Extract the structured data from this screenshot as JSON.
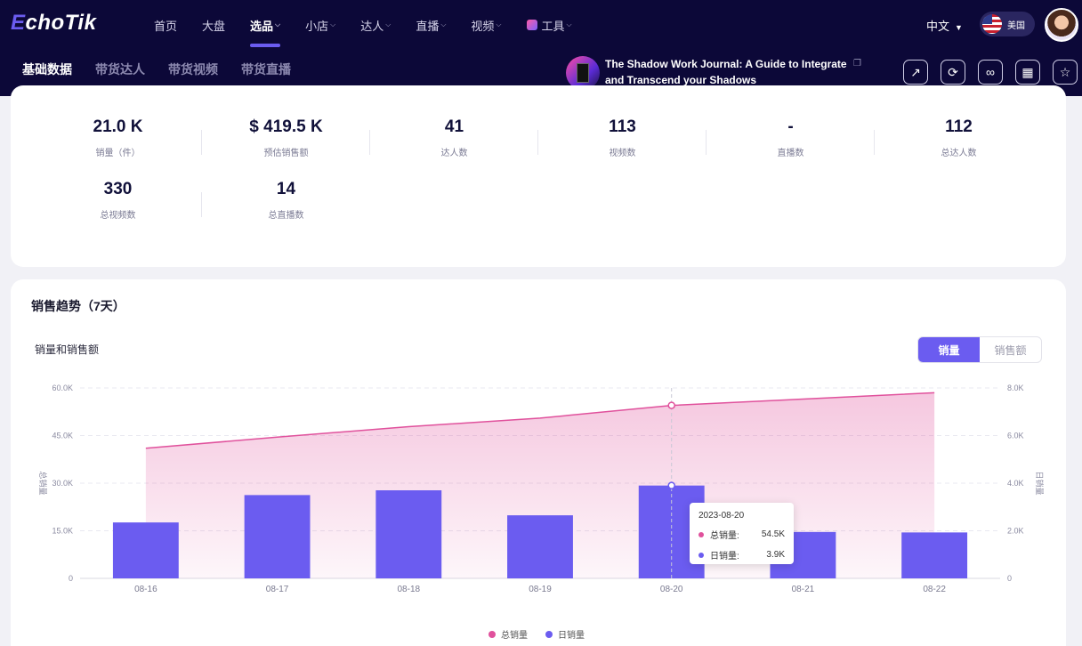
{
  "header": {
    "logo_prefix": "E",
    "logo_rest": "choTik",
    "nav": [
      {
        "label": "首页",
        "caret": false,
        "active": false
      },
      {
        "label": "大盘",
        "caret": false,
        "active": false
      },
      {
        "label": "选品",
        "caret": true,
        "active": true
      },
      {
        "label": "小店",
        "caret": true,
        "active": false
      },
      {
        "label": "达人",
        "caret": true,
        "active": false
      },
      {
        "label": "直播",
        "caret": true,
        "active": false
      },
      {
        "label": "视频",
        "caret": true,
        "active": false
      },
      {
        "label": "工具",
        "caret": true,
        "active": false,
        "icon": "tools-icon"
      }
    ],
    "language": "中文",
    "region": "美国",
    "subtabs": [
      "基础数据",
      "带货达人",
      "带货视频",
      "带货直播"
    ],
    "active_subtab": 0,
    "product_title": "The Shadow Work Journal: A Guide to Integrate and Transcend your Shadows",
    "action_icons": [
      "share-icon",
      "refresh-icon",
      "link-icon",
      "qrcode-icon",
      "star-icon"
    ]
  },
  "stats": [
    {
      "value": "21.0 K",
      "label": "销量（件）"
    },
    {
      "value": "$ 419.5 K",
      "label": "预估销售额"
    },
    {
      "value": "41",
      "label": "达人数"
    },
    {
      "value": "113",
      "label": "视频数"
    },
    {
      "value": "-",
      "label": "直播数"
    },
    {
      "value": "112",
      "label": "总达人数"
    },
    {
      "value": "330",
      "label": "总视频数"
    },
    {
      "value": "14",
      "label": "总直播数"
    }
  ],
  "trend": {
    "title": "销售趋势（7天）",
    "chart_title": "销量和销售额",
    "toggle": [
      "销量",
      "销售额"
    ],
    "toggle_active": 0
  },
  "chart_data": {
    "type": "bar",
    "categories": [
      "08-16",
      "08-17",
      "08-18",
      "08-19",
      "08-20",
      "08-21",
      "08-22"
    ],
    "series": [
      {
        "name": "总销量",
        "type": "area",
        "axis": "left",
        "color": "#e0519c",
        "values": [
          41000,
          44500,
          47800,
          50500,
          54500,
          56500,
          58500
        ]
      },
      {
        "name": "日销量",
        "type": "bar",
        "axis": "right",
        "color": "#6b5cf0",
        "values": [
          2350,
          3500,
          3700,
          2650,
          3900,
          1950,
          1930
        ]
      }
    ],
    "ylabel_left": "总销量",
    "ylabel_right": "日销量",
    "y_left_ticks": [
      "60.0K",
      "45.0K",
      "30.0K",
      "15.0K",
      "0"
    ],
    "y_right_ticks": [
      "8.0K",
      "6.0K",
      "4.0K",
      "2.0K",
      "0"
    ],
    "ylim_left": [
      0,
      60000
    ],
    "ylim_right": [
      0,
      8000
    ],
    "grid": true,
    "legend": "bottom",
    "tooltip": {
      "date": "2023-08-20",
      "rows": [
        {
          "name": "总销量:",
          "value": "54.5K"
        },
        {
          "name": "日销量:",
          "value": "3.9K"
        }
      ]
    }
  }
}
